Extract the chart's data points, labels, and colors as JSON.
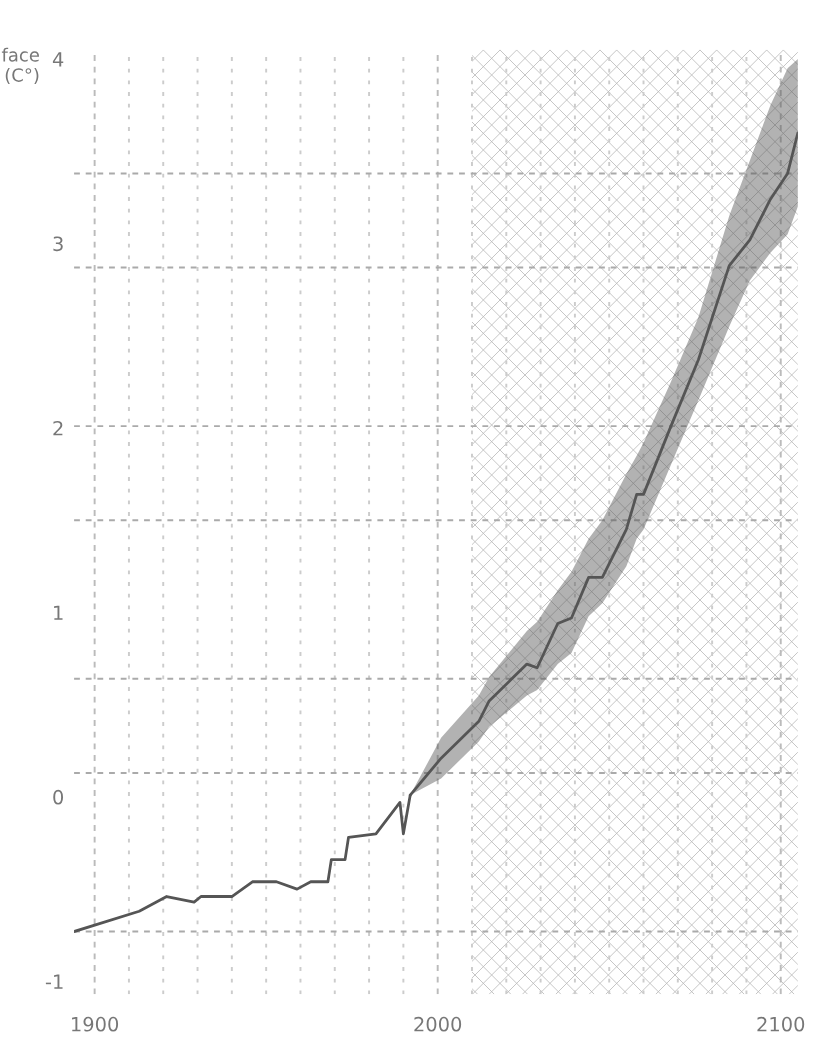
{
  "chart_data": {
    "type": "line",
    "ylabel": "face\n(C°)",
    "series": [
      {
        "color": "#555555",
        "x": [
          1894,
          1913,
          1921,
          1929,
          1931,
          1940,
          1946,
          1953,
          1959,
          1963,
          1968,
          1969,
          1973,
          1974,
          1982,
          1989,
          1990,
          1992
        ],
        "values": [
          -0.73,
          -0.62,
          -0.54,
          -0.57,
          -0.54,
          -0.54,
          -0.46,
          -0.46,
          -0.5,
          -0.46,
          -0.46,
          -0.34,
          -0.34,
          -0.22,
          -0.2,
          -0.03,
          -0.2,
          0.01
        ]
      },
      {
        "color": "#555555",
        "x": [
          1992,
          2001,
          2012,
          2015,
          2026,
          2029,
          2035,
          2039,
          2044,
          2048,
          2055,
          2058,
          2060,
          2068,
          2076,
          2085,
          2091,
          2097,
          2102,
          2105
        ],
        "values": [
          0.01,
          0.21,
          0.41,
          0.52,
          0.72,
          0.7,
          0.94,
          0.97,
          1.19,
          1.19,
          1.45,
          1.64,
          1.64,
          2.01,
          2.37,
          2.88,
          3.02,
          3.24,
          3.38,
          3.6
        ],
        "lower": [
          0.01,
          0.1,
          0.3,
          0.38,
          0.55,
          0.58,
          0.72,
          0.78,
          0.98,
          1.05,
          1.25,
          1.4,
          1.45,
          1.8,
          2.15,
          2.55,
          2.8,
          2.95,
          3.05,
          3.2
        ],
        "upper": [
          0.01,
          0.32,
          0.55,
          0.65,
          0.9,
          0.95,
          1.12,
          1.22,
          1.4,
          1.5,
          1.75,
          1.85,
          1.92,
          2.25,
          2.6,
          3.15,
          3.45,
          3.75,
          3.95,
          4.0
        ]
      }
    ],
    "xlim": [
      1894,
      2105
    ],
    "xticks": [
      1900,
      {
        "value": 1910,
        "label": null
      },
      {
        "value": 1920,
        "label": null
      },
      {
        "value": 1930,
        "label": null
      },
      {
        "value": 1940,
        "label": null
      },
      {
        "value": 1950,
        "label": null
      },
      {
        "value": 1960,
        "label": null
      },
      {
        "value": 1970,
        "label": null
      },
      {
        "value": 1980,
        "label": null
      },
      {
        "value": 1990,
        "label": null
      },
      2000,
      {
        "value": 2010,
        "label": null
      },
      {
        "value": 2020,
        "label": null
      },
      {
        "value": 2030,
        "label": null
      },
      {
        "value": 2040,
        "label": null
      },
      {
        "value": 2050,
        "label": null
      },
      {
        "value": 2060,
        "label": null
      },
      {
        "value": 2070,
        "label": null
      },
      {
        "value": 2080,
        "label": null
      },
      {
        "value": 2090,
        "label": null
      },
      2100
    ],
    "ylim": [
      -1.07,
      4.05
    ],
    "yticks": [
      -1,
      0,
      1,
      2,
      3,
      4,
      {
        "value": -0.73,
        "label": null
      },
      {
        "value": 0.13,
        "label": null
      },
      {
        "value": 0.64,
        "label": null
      },
      {
        "value": 1.5,
        "label": null
      },
      {
        "value": 2.01,
        "label": null
      },
      {
        "value": 2.87,
        "label": null
      },
      {
        "value": 3.38,
        "label": null
      }
    ],
    "bands": [
      {
        "axis": "x",
        "from": 2010,
        "to": 2105,
        "color": "#bbbbbb"
      }
    ],
    "grid": true,
    "marker": "none",
    "line_style": "solid",
    "legend": false
  }
}
